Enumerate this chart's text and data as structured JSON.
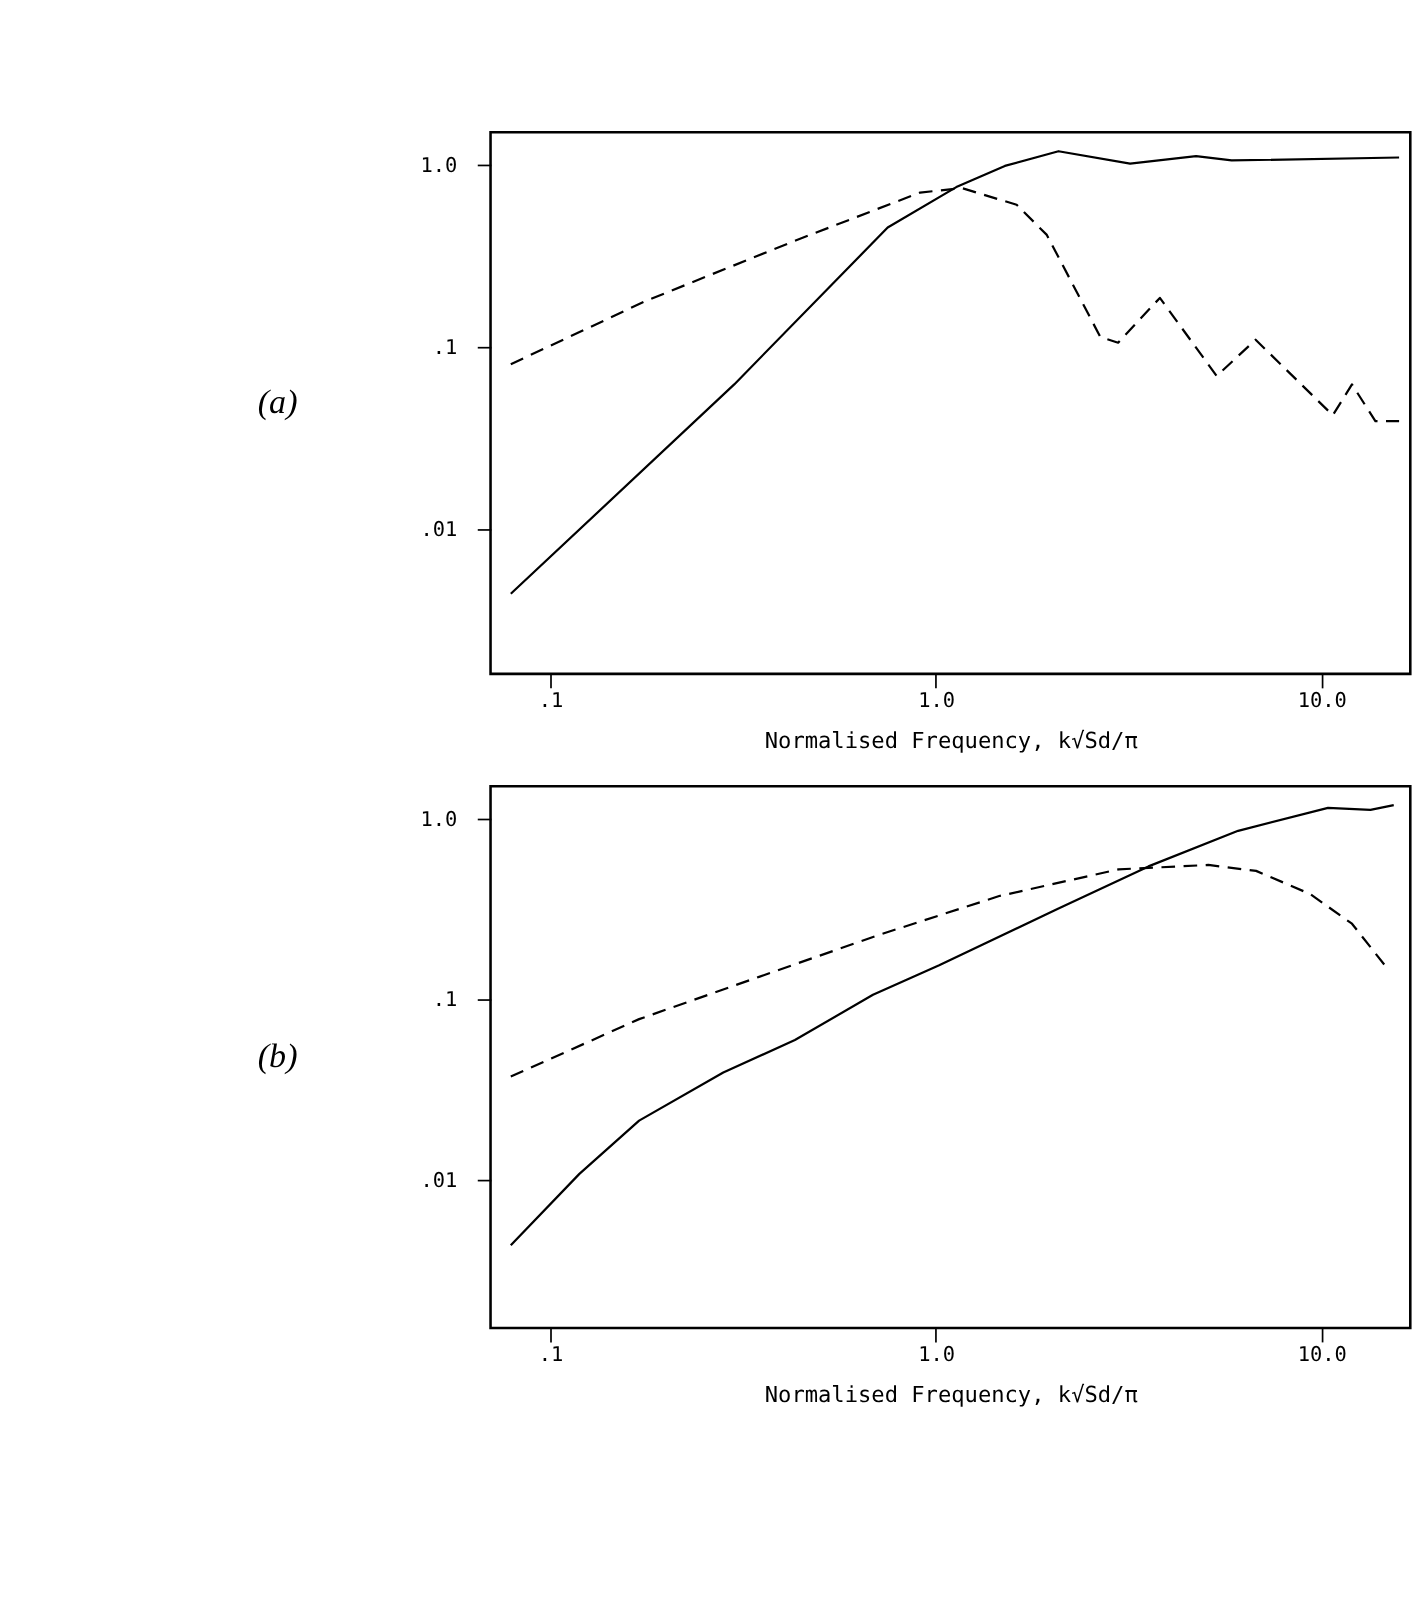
{
  "chart_data": [
    {
      "type": "line",
      "xlabel": "Normalised Frequency, k√Sd/π",
      "annotations": [
        "(a)"
      ],
      "log": "xy",
      "grid": false,
      "xlim": [
        0.07,
        17
      ],
      "ylim": [
        0.0016,
        1.5
      ],
      "xticks": [
        {
          "value": 0.1,
          "label": ".1"
        },
        {
          "value": 1,
          "label": "1.0"
        },
        {
          "value": 10,
          "label": "10.0"
        }
      ],
      "yticks": [
        {
          "value": 0.01,
          "label": ".01"
        },
        {
          "value": 0.1,
          "label": ".1"
        },
        {
          "value": 1,
          "label": "1.0"
        }
      ],
      "series": [
        {
          "color": "#000000",
          "line_style": "solid",
          "x": [
            0.079,
            0.3,
            0.75,
            1.13,
            1.51,
            2.08,
            3.19,
            4.73,
            5.85,
            15.9
          ],
          "values": [
            0.0044,
            0.062,
            0.45,
            0.75,
            0.98,
            1.18,
            1.01,
            1.11,
            1.05,
            1.09
          ]
        },
        {
          "color": "#000000",
          "line_style": "dashed",
          "x": [
            0.079,
            0.177,
            0.43,
            0.91,
            1.17,
            1.62,
            1.94,
            2.67,
            2.97,
            3.81,
            5.35,
            6.75,
            10.7,
            12.0,
            13.8,
            15.9
          ],
          "values": [
            0.08,
            0.178,
            0.38,
            0.7,
            0.74,
            0.6,
            0.41,
            0.113,
            0.105,
            0.185,
            0.069,
            0.109,
            0.042,
            0.062,
            0.039,
            0.039
          ]
        }
      ]
    },
    {
      "type": "line",
      "xlabel": "Normalised Frequency, k√Sd/π",
      "annotations": [
        "(b)"
      ],
      "log": "xy",
      "grid": false,
      "xlim": [
        0.07,
        17
      ],
      "ylim": [
        0.0015,
        1.5
      ],
      "xticks": [
        {
          "value": 0.1,
          "label": ".1"
        },
        {
          "value": 1,
          "label": "1.0"
        },
        {
          "value": 10,
          "label": "10.0"
        }
      ],
      "yticks": [
        {
          "value": 0.01,
          "label": ".01"
        },
        {
          "value": 0.1,
          "label": ".1"
        },
        {
          "value": 1,
          "label": "1.0"
        }
      ],
      "series": [
        {
          "color": "#000000",
          "line_style": "solid",
          "x": [
            0.079,
            0.119,
            0.17,
            0.281,
            0.431,
            0.687,
            1.02,
            2.08,
            3.56,
            6.08,
            10.4,
            13.4,
            15.4
          ],
          "values": [
            0.0043,
            0.0107,
            0.0211,
            0.039,
            0.059,
            0.105,
            0.153,
            0.316,
            0.54,
            0.85,
            1.14,
            1.11,
            1.18
          ]
        },
        {
          "color": "#000000",
          "line_style": "dashed",
          "x": [
            0.079,
            0.17,
            0.348,
            0.71,
            1.46,
            2.98,
            5.09,
            6.77,
            9.34,
            12.0,
            14.6
          ],
          "values": [
            0.037,
            0.077,
            0.132,
            0.225,
            0.37,
            0.52,
            0.55,
            0.51,
            0.38,
            0.26,
            0.153
          ]
        }
      ]
    }
  ]
}
